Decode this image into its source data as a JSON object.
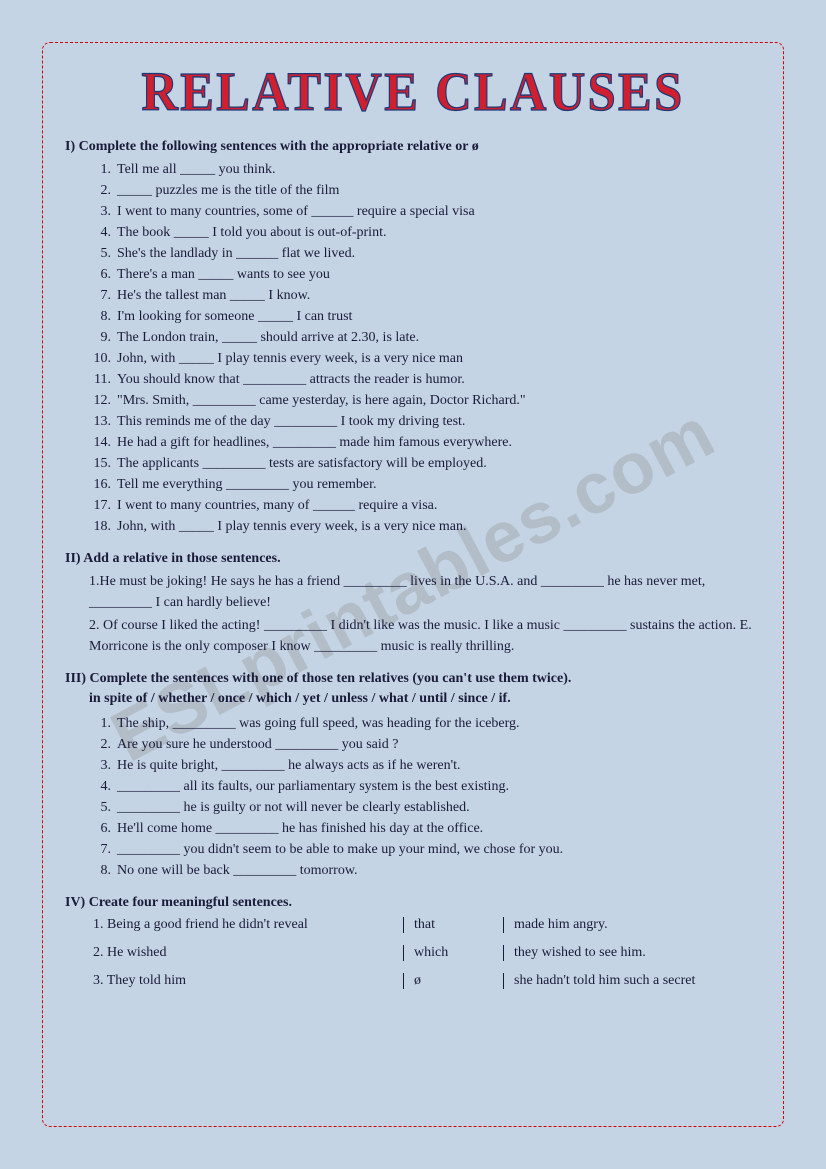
{
  "title": "RELATIVE CLAUSES",
  "watermark": "ESLprintables.com",
  "section1": {
    "heading": "I) Complete the following sentences with the appropriate relative or ø",
    "items": [
      "Tell me all _____ you think.",
      "_____ puzzles me is the title of the film",
      "I went to many countries, some of ______ require a special visa",
      "The book _____ I told you about is out-of-print.",
      "She's the landlady in ______ flat we lived.",
      "There's a man _____ wants to see you",
      "He's the tallest man _____ I know.",
      "I'm looking for someone _____ I can trust",
      "The London train, _____ should arrive at 2.30, is late.",
      "John, with _____ I play tennis every week, is a very nice man",
      "You should know that _________ attracts the reader is humor.",
      "\"Mrs. Smith, _________ came yesterday, is here again, Doctor Richard.\"",
      "This reminds me of the day _________ I took my driving test.",
      "He had a gift for headlines, _________ made him famous everywhere.",
      "The applicants _________ tests are satisfactory will be employed.",
      "Tell me everything _________ you remember.",
      "I went to many countries, many of ______ require a visa.",
      "John, with _____ I play tennis every week, is a very nice man."
    ]
  },
  "section2": {
    "heading": "II) Add a relative in those sentences.",
    "items": [
      "1.He must be joking! He says he has a friend _________ lives in the U.S.A. and _________ he has never met, _________ I can hardly believe!",
      "2. Of course I liked the acting! _________ I didn't like was the music. I like a music _________ sustains the action. E. Morricone is the only composer I know _________ music is really thrilling."
    ]
  },
  "section3": {
    "heading": "III) Complete the sentences with one of those ten relatives (you can't use them twice).",
    "sub": "in spite of / whether / once / which / yet / unless / what / until / since / if.",
    "items": [
      "The ship, _________ was going full speed, was heading for the iceberg.",
      "Are you sure he understood _________ you said ?",
      "He is quite bright, _________ he always acts as if he weren't.",
      "_________ all its faults, our parliamentary system is the best existing.",
      "_________ he is guilty or not will never be clearly established.",
      "He'll come home _________ he has finished his day at the office.",
      "_________ you didn't seem to be able to make up your mind, we chose for you.",
      "No one will be back _________ tomorrow."
    ]
  },
  "section4": {
    "heading": "IV) Create four meaningful sentences.",
    "rows": [
      {
        "a": "1. Being a good friend he didn't reveal",
        "b": "that",
        "c": "made him angry."
      },
      {
        "a": "2. He wished",
        "b": "which",
        "c": "they wished to see him."
      },
      {
        "a": "3. They told him",
        "b": "ø",
        "c": "she hadn't told him such a secret"
      }
    ]
  }
}
